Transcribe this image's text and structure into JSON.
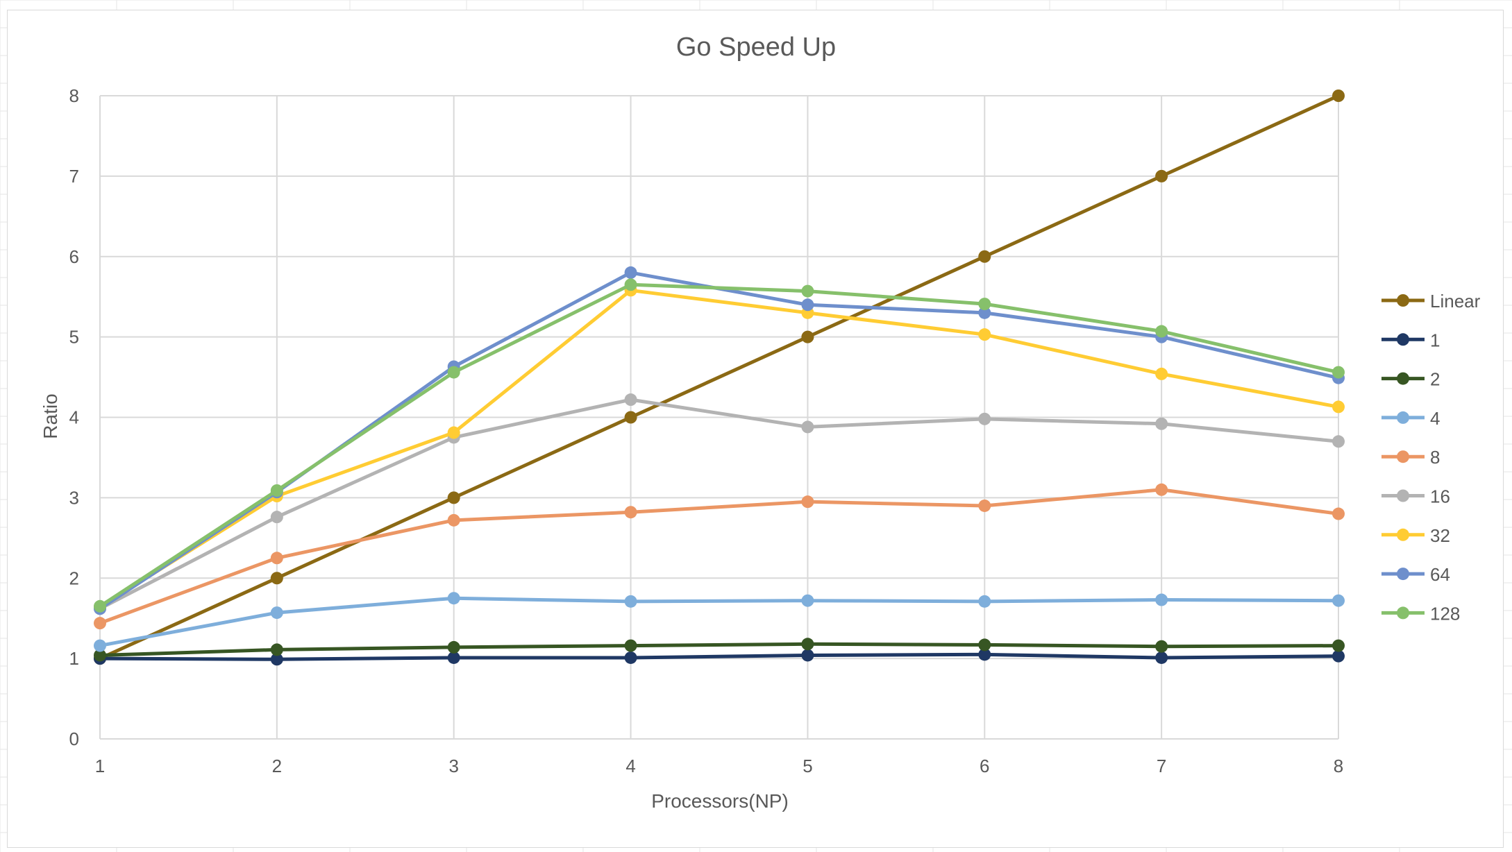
{
  "chart_data": {
    "type": "line",
    "title": "Go Speed Up",
    "xlabel": "Processors(NP)",
    "ylabel": "Ratio",
    "x": [
      1,
      2,
      3,
      4,
      5,
      6,
      7,
      8
    ],
    "xlim": [
      1,
      8
    ],
    "ylim": [
      0,
      8
    ],
    "yticks": [
      0,
      1,
      2,
      3,
      4,
      5,
      6,
      7,
      8
    ],
    "grid": true,
    "legend_position": "right",
    "series": [
      {
        "name": "Linear",
        "color": "#8B6914",
        "values": [
          1,
          2,
          3,
          4,
          5,
          6,
          7,
          8
        ]
      },
      {
        "name": "1",
        "color": "#1F3864",
        "values": [
          1.0,
          0.99,
          1.01,
          1.01,
          1.04,
          1.05,
          1.01,
          1.03
        ]
      },
      {
        "name": "2",
        "color": "#375623",
        "values": [
          1.04,
          1.11,
          1.14,
          1.16,
          1.18,
          1.17,
          1.15,
          1.16
        ]
      },
      {
        "name": "4",
        "color": "#7EAEDB",
        "values": [
          1.16,
          1.57,
          1.75,
          1.71,
          1.72,
          1.71,
          1.73,
          1.72
        ]
      },
      {
        "name": "8",
        "color": "#EB9664",
        "values": [
          1.44,
          2.25,
          2.72,
          2.82,
          2.95,
          2.9,
          3.1,
          2.8
        ]
      },
      {
        "name": "16",
        "color": "#B3B3B3",
        "values": [
          1.62,
          2.76,
          3.75,
          4.22,
          3.88,
          3.98,
          3.92,
          3.7
        ]
      },
      {
        "name": "32",
        "color": "#FFCC33",
        "values": [
          1.64,
          3.02,
          3.81,
          5.58,
          5.3,
          5.03,
          4.54,
          4.13
        ]
      },
      {
        "name": "64",
        "color": "#6E8FCC",
        "values": [
          1.62,
          3.07,
          4.63,
          5.8,
          5.4,
          5.3,
          5.0,
          4.49
        ]
      },
      {
        "name": "128",
        "color": "#86C06B",
        "values": [
          1.65,
          3.09,
          4.56,
          5.65,
          5.57,
          5.41,
          5.07,
          4.56
        ]
      }
    ]
  }
}
